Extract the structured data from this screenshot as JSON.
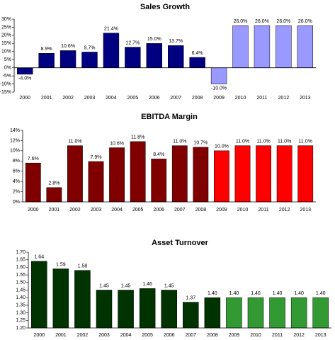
{
  "chart_data": [
    {
      "type": "bar",
      "title": "Sales Growth",
      "categories": [
        "2000",
        "2001",
        "2002",
        "2003",
        "2004",
        "2005",
        "2006",
        "2007",
        "2008",
        "2009",
        "2010",
        "2011",
        "2012",
        "2013"
      ],
      "values": [
        -4.0,
        8.9,
        10.6,
        9.7,
        21.4,
        12.7,
        15.0,
        13.7,
        6.4,
        -10.0,
        26.0,
        26.0,
        26.0,
        26.0
      ],
      "value_labels": [
        "-4.0%",
        "8.9%",
        "10.6%",
        "9.7%",
        "21.4%",
        "12.7%",
        "15.0%",
        "13.7%",
        "6.4%",
        "-10.0%",
        "26.0%",
        "26.0%",
        "26.0%",
        "26.0%"
      ],
      "colors": [
        "#000080",
        "#000080",
        "#000080",
        "#000080",
        "#000080",
        "#000080",
        "#000080",
        "#000080",
        "#000080",
        "#9999ff",
        "#9999ff",
        "#9999ff",
        "#9999ff",
        "#9999ff"
      ],
      "ylim": [
        -15,
        30
      ],
      "yticks": [
        {
          "value": -15,
          "label": "-15%"
        },
        {
          "value": -10,
          "label": "-10%"
        },
        {
          "value": -5,
          "label": "-5%"
        },
        {
          "value": 0,
          "label": "0%"
        },
        {
          "value": 5,
          "label": "5%"
        },
        {
          "value": 10,
          "label": "10%"
        },
        {
          "value": 15,
          "label": "15%"
        },
        {
          "value": 20,
          "label": "20%"
        },
        {
          "value": 25,
          "label": "25%"
        },
        {
          "value": 30,
          "label": "30%"
        }
      ]
    },
    {
      "type": "bar",
      "title": "EBITDA Margin",
      "categories": [
        "2000",
        "2001",
        "2002",
        "2003",
        "2004",
        "2005",
        "2006",
        "2007",
        "2008",
        "2009",
        "2010",
        "2011",
        "2012",
        "2013"
      ],
      "values": [
        7.6,
        2.8,
        11.0,
        7.9,
        10.6,
        11.8,
        8.4,
        11.0,
        10.7,
        10.0,
        11.0,
        11.0,
        11.0,
        11.0
      ],
      "value_labels": [
        "7.6%",
        "2.8%",
        "11.0%",
        "7.9%",
        "10.6%",
        "11.8%",
        "8.4%",
        "11.0%",
        "10.7%",
        "10.0%",
        "11.0%",
        "11.0%",
        "11.0%",
        "11.0%"
      ],
      "colors": [
        "#800000",
        "#800000",
        "#800000",
        "#800000",
        "#800000",
        "#800000",
        "#800000",
        "#800000",
        "#800000",
        "#ff0000",
        "#ff0000",
        "#ff0000",
        "#ff0000",
        "#ff0000"
      ],
      "ylim": [
        0,
        14
      ],
      "yticks": [
        {
          "value": 0,
          "label": "0%"
        },
        {
          "value": 2,
          "label": "2%"
        },
        {
          "value": 4,
          "label": "4%"
        },
        {
          "value": 6,
          "label": "6%"
        },
        {
          "value": 8,
          "label": "8%"
        },
        {
          "value": 10,
          "label": "10%"
        },
        {
          "value": 12,
          "label": "12%"
        },
        {
          "value": 14,
          "label": "14%"
        }
      ]
    },
    {
      "type": "bar",
      "title": "Asset Turnover",
      "categories": [
        "2000",
        "2001",
        "2002",
        "2003",
        "2004",
        "2005",
        "2006",
        "2007",
        "2008",
        "2009",
        "2010",
        "2011",
        "2012",
        "2013"
      ],
      "values": [
        1.64,
        1.59,
        1.58,
        1.45,
        1.45,
        1.46,
        1.45,
        1.37,
        1.4,
        1.4,
        1.4,
        1.4,
        1.4,
        1.4
      ],
      "value_labels": [
        "1.64",
        "1.59",
        "1.58",
        "1.45",
        "1.45",
        "1.46",
        "1.45",
        "1.37",
        "1.40",
        "1.40",
        "1.40",
        "1.40",
        "1.40",
        "1.40"
      ],
      "colors": [
        "#003300",
        "#003300",
        "#003300",
        "#003300",
        "#003300",
        "#003300",
        "#003300",
        "#003300",
        "#003300",
        "#339933",
        "#339933",
        "#339933",
        "#339933",
        "#339933"
      ],
      "ylim": [
        1.2,
        1.7
      ],
      "yticks": [
        {
          "value": 1.2,
          "label": "1.20"
        },
        {
          "value": 1.25,
          "label": "1.25"
        },
        {
          "value": 1.3,
          "label": "1.30"
        },
        {
          "value": 1.35,
          "label": "1.35"
        },
        {
          "value": 1.4,
          "label": "1.40"
        },
        {
          "value": 1.45,
          "label": "1.45"
        },
        {
          "value": 1.5,
          "label": "1.50"
        },
        {
          "value": 1.55,
          "label": "1.55"
        },
        {
          "value": 1.6,
          "label": "1.60"
        },
        {
          "value": 1.65,
          "label": "1.65"
        },
        {
          "value": 1.7,
          "label": "1.70"
        }
      ]
    }
  ]
}
